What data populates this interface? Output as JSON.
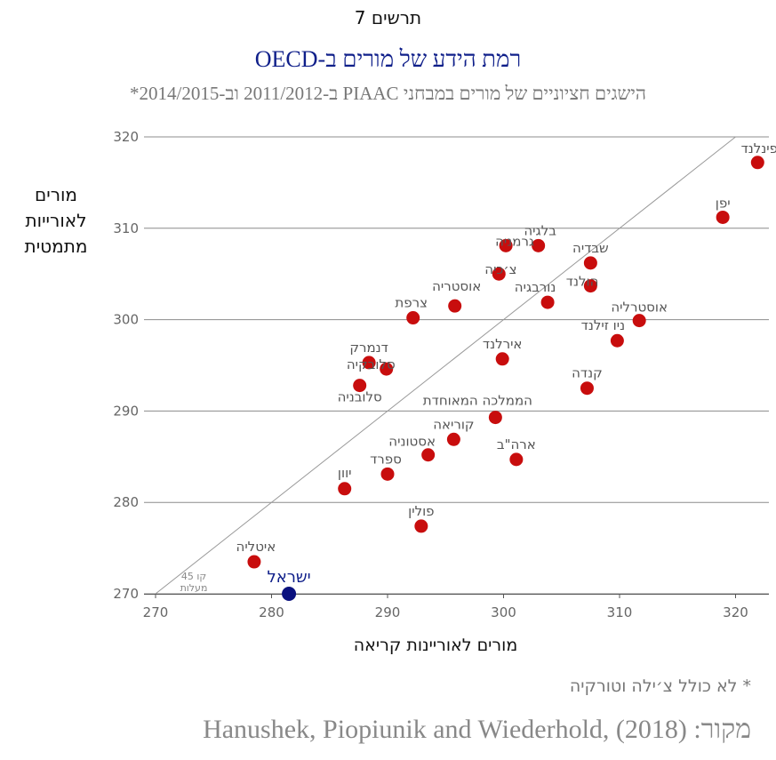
{
  "figure_label": "תרשים 7",
  "title": "רמת הידע של מורים ב-OECD",
  "subtitle": "הישגים חציוניים של מורים במבחני PIAAC ב-2011/2012 וב-2014/2015*",
  "footnote": "* לא כולל צ׳ילה וטורקיה",
  "source": "מקור: Hanushek, Piopiunik and Wiederhold, (2018)",
  "colors": {
    "point": "#c80d0d",
    "highlight": "#0a117e",
    "title": "#0f1f8a",
    "grid": "#8c8c8c"
  },
  "chart_data": {
    "type": "scatter",
    "title": "רמת הידע של מורים ב-OECD",
    "subtitle": "הישגים חציוניים של מורים במבחני PIAAC ב-2011/2012 וב-2014/2015*",
    "xlabel": "מורים לאוריינות קריאה",
    "ylabel": "מורים לאורייות מתמטית",
    "xlim": [
      270,
      325
    ],
    "ylim": [
      270,
      320
    ],
    "xticks": [
      270,
      280,
      290,
      300,
      310,
      320
    ],
    "yticks": [
      270,
      280,
      290,
      300,
      310,
      320
    ],
    "grid": "horizontal",
    "reference_line": {
      "label": "קו 45 מעלות",
      "from": [
        270,
        270
      ],
      "to": [
        320,
        320
      ]
    },
    "points": [
      {
        "label": "פינלנד",
        "x": 321.9,
        "y": 317.2
      },
      {
        "label": "יפן",
        "x": 318.9,
        "y": 311.2
      },
      {
        "label": "בלגיה",
        "x": 303.0,
        "y": 308.1
      },
      {
        "label": "גרמניה",
        "x": 300.2,
        "y": 308.1
      },
      {
        "label": "שבדיה",
        "x": 307.5,
        "y": 306.2
      },
      {
        "label": "צ׳כיה",
        "x": 299.6,
        "y": 305.0
      },
      {
        "label": "הולנד",
        "x": 307.5,
        "y": 303.7
      },
      {
        "label": "נורבגיה",
        "x": 303.8,
        "y": 301.9
      },
      {
        "label": "אוסטריה",
        "x": 295.8,
        "y": 301.5
      },
      {
        "label": "צרפת",
        "x": 292.2,
        "y": 300.2
      },
      {
        "label": "אוסטרליה",
        "x": 311.7,
        "y": 299.9
      },
      {
        "label": "ניו זילנד",
        "x": 309.8,
        "y": 297.7
      },
      {
        "label": "אירלנד",
        "x": 299.9,
        "y": 295.7
      },
      {
        "label": "דנמרק",
        "x": 288.4,
        "y": 295.3
      },
      {
        "label": "סלובקיה",
        "x": 289.9,
        "y": 294.6
      },
      {
        "label": "סלובניה",
        "x": 287.6,
        "y": 292.8
      },
      {
        "label": "קנדה",
        "x": 307.2,
        "y": 292.5
      },
      {
        "label": "הממלכה המאוחדת",
        "x": 299.3,
        "y": 289.3
      },
      {
        "label": "קוריאה",
        "x": 295.7,
        "y": 286.9
      },
      {
        "label": "אסטוניה",
        "x": 293.5,
        "y": 285.2
      },
      {
        "label": "ארה\"ב",
        "x": 301.1,
        "y": 284.7
      },
      {
        "label": "ספרד",
        "x": 290.0,
        "y": 283.1
      },
      {
        "label": "יוון",
        "x": 286.3,
        "y": 281.5
      },
      {
        "label": "פולין",
        "x": 292.9,
        "y": 277.4
      },
      {
        "label": "איטליה",
        "x": 278.5,
        "y": 273.5
      },
      {
        "label": "ישראל",
        "x": 281.5,
        "y": 270.0,
        "highlight": true
      }
    ]
  }
}
